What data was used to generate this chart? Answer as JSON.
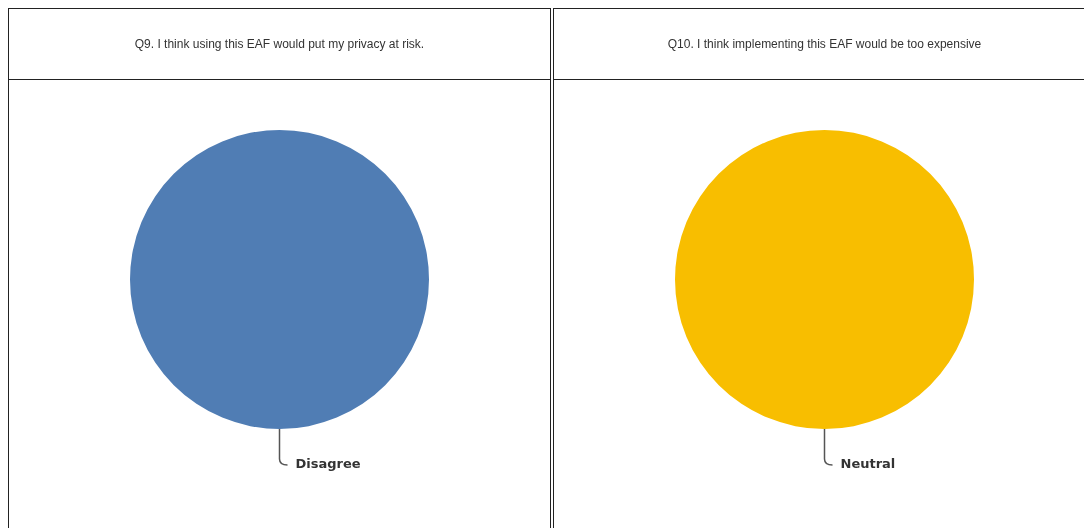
{
  "chart_data": [
    {
      "type": "pie",
      "title": "Q9. I think using this EAF would put my privacy at risk.",
      "categories": [
        "Disagree"
      ],
      "values": [
        100
      ],
      "colors": [
        "#507db4"
      ]
    },
    {
      "type": "pie",
      "title": "Q10. I think implementing this EAF would be too expensive",
      "categories": [
        "Neutral"
      ],
      "values": [
        100
      ],
      "colors": [
        "#f8be00"
      ]
    }
  ]
}
